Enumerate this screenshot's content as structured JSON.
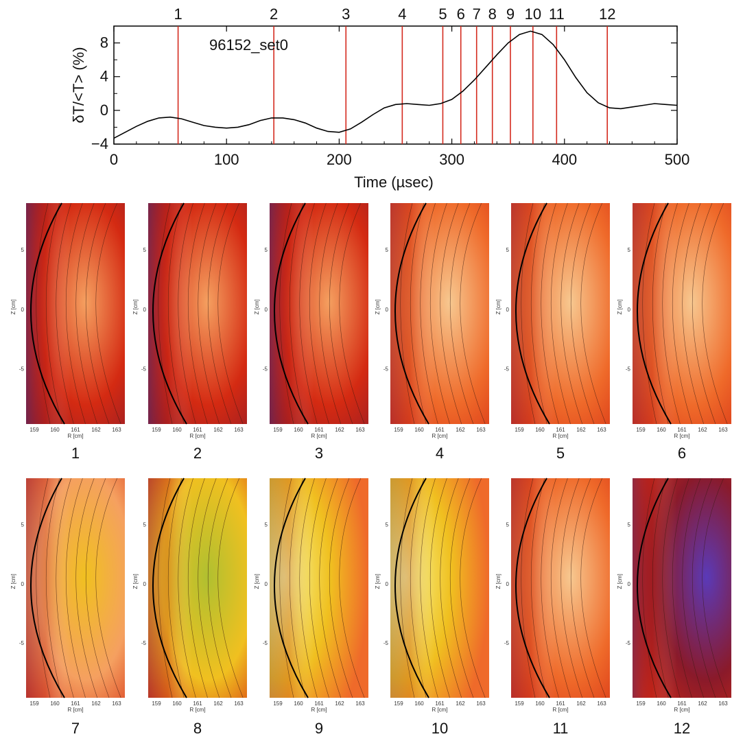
{
  "chart_data": [
    {
      "type": "line",
      "annotation": "96152_set0",
      "xlabel": "Time (µsec)",
      "ylabel": "δT/<T> (%)",
      "xlim": [
        0,
        500
      ],
      "ylim": [
        -4,
        10
      ],
      "xticks": [
        0,
        100,
        200,
        300,
        400,
        500
      ],
      "yticks": [
        -4,
        0,
        4,
        8
      ],
      "series": [
        {
          "color": "#000000",
          "x": [
            0,
            10,
            20,
            30,
            40,
            50,
            60,
            70,
            80,
            90,
            100,
            110,
            120,
            130,
            140,
            150,
            160,
            170,
            180,
            190,
            200,
            210,
            220,
            230,
            240,
            250,
            260,
            270,
            280,
            290,
            300,
            310,
            320,
            330,
            340,
            350,
            360,
            370,
            380,
            390,
            400,
            410,
            420,
            430,
            440,
            450,
            460,
            470,
            480,
            490,
            500
          ],
          "y": [
            -3.3,
            -2.6,
            -1.9,
            -1.3,
            -0.9,
            -0.8,
            -1.0,
            -1.4,
            -1.8,
            -2.0,
            -2.1,
            -2.0,
            -1.7,
            -1.2,
            -0.9,
            -0.9,
            -1.1,
            -1.5,
            -2.1,
            -2.5,
            -2.6,
            -2.2,
            -1.4,
            -0.5,
            0.3,
            0.7,
            0.8,
            0.7,
            0.6,
            0.8,
            1.3,
            2.3,
            3.6,
            5.1,
            6.6,
            8.0,
            9.0,
            9.4,
            9.0,
            7.8,
            6.0,
            3.9,
            2.1,
            0.9,
            0.3,
            0.2,
            0.4,
            0.6,
            0.8,
            0.7,
            0.6
          ]
        }
      ],
      "markers": {
        "color": "#d42a1e",
        "labels": [
          "1",
          "2",
          "3",
          "4",
          "5",
          "6",
          "7",
          "8",
          "9",
          "10",
          "11",
          "12"
        ],
        "x": [
          57,
          142,
          206,
          256,
          292,
          308,
          322,
          336,
          352,
          372,
          393,
          438
        ]
      }
    },
    {
      "type": "heatmap",
      "xlabel": "R [cm]",
      "ylabel": "Z [cm]",
      "xticks": [
        "159",
        "160",
        "161",
        "162",
        "163"
      ],
      "yticks": [
        "5",
        "0",
        "-5"
      ],
      "colormap": [
        "#5a3ab8",
        "#8a1a2a",
        "#d42a12",
        "#ef6a2a",
        "#f5a060",
        "#f7c890",
        "#f0c020",
        "#b0c030",
        "#f5f590"
      ],
      "panel_labels": [
        "1",
        "2",
        "3",
        "4",
        "5",
        "6",
        "7",
        "8",
        "9",
        "10",
        "11",
        "12"
      ],
      "panel_levels": [
        0.1,
        0.12,
        0.1,
        0.3,
        0.25,
        0.3,
        0.6,
        0.8,
        1.0,
        0.95,
        0.4,
        -0.6
      ]
    }
  ]
}
